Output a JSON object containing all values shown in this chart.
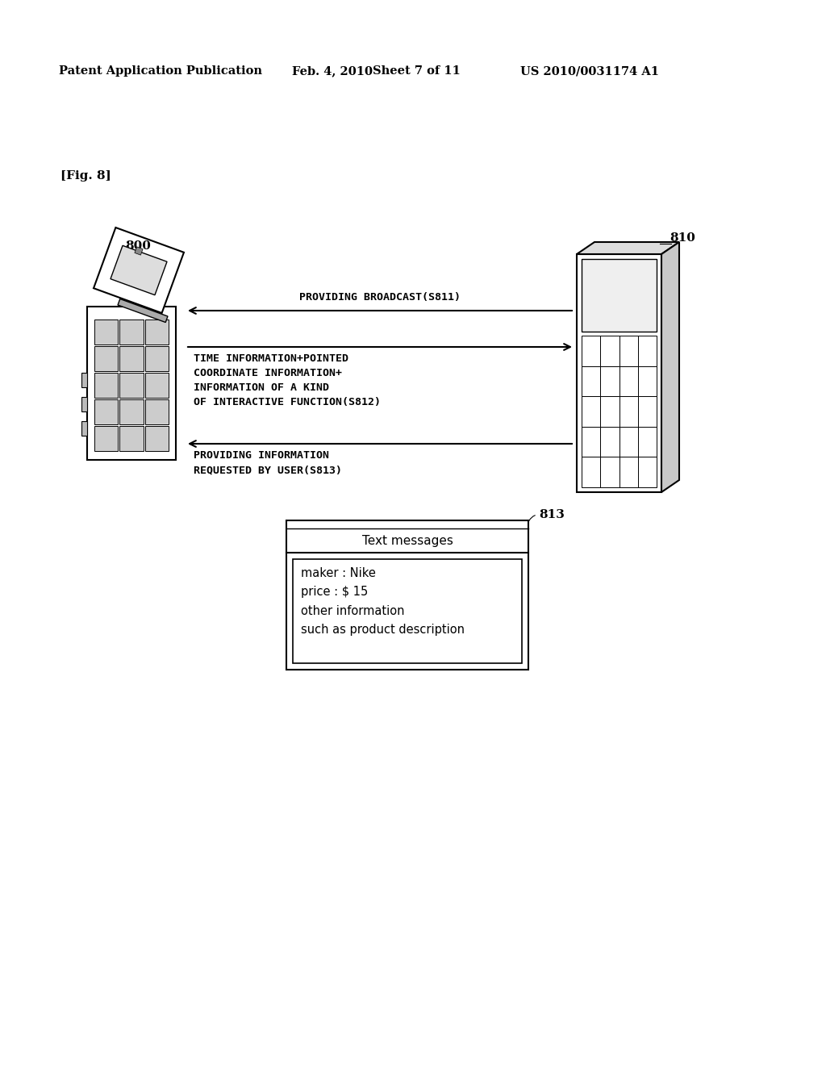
{
  "bg_color": "#ffffff",
  "header_text1": "Patent Application Publication",
  "header_text2": "Feb. 4, 2010",
  "header_text3": "Sheet 7 of 11",
  "header_text4": "US 2010/0031174 A1",
  "fig_label": "[Fig. 8]",
  "label_800": "800",
  "label_810": "810",
  "label_813": "813",
  "arrow1_label": "PROVIDING BROADCAST(S811)",
  "arrow2_label": "TIME INFORMATION+POINTED\nCOORDINATE INFORMATION+\nINFORMATION OF A KIND\nOF INTERACTIVE FUNCTION(S812)",
  "arrow3_label": "PROVIDING INFORMATION\nREQUESTED BY USER(S813)",
  "text_messages_title": "Text messages",
  "text_messages_content": "maker : Nike\nprice : $ 15\nother information\nsuch as product description"
}
